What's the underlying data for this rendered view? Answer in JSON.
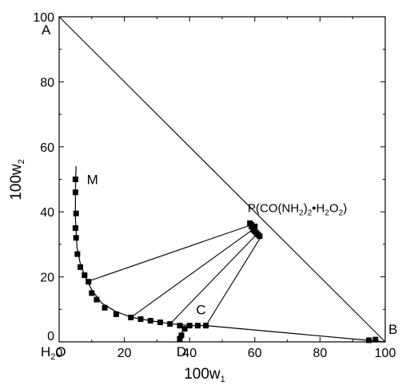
{
  "chart_data": {
    "type": "scatter",
    "title": "",
    "xlabel": "100w",
    "xlabel_sub": "1",
    "ylabel": "100w",
    "ylabel_sub": "2",
    "xlim": [
      0,
      100
    ],
    "ylim": [
      0,
      100
    ],
    "x_ticks": [
      0,
      20,
      40,
      60,
      80,
      100
    ],
    "y_ticks": [
      0,
      20,
      40,
      60,
      80,
      100
    ],
    "grid": false,
    "legend": "none",
    "colors": {
      "marker": "#000000",
      "line": "#000000"
    },
    "corner_labels": {
      "water": {
        "base": "H",
        "sub": "2",
        "tail": "O"
      },
      "A": "A",
      "B": "B"
    },
    "point_labels": [
      {
        "text": "M",
        "x": 8.5,
        "y": 50
      },
      {
        "text": "C",
        "x": 42,
        "y": 10
      },
      {
        "text": "D",
        "x": 36,
        "y": -3
      }
    ],
    "compound_label": {
      "x": 63.5,
      "y": 37,
      "parts": [
        {
          "t": "P(CO(NH"
        },
        {
          "t": "2",
          "sub": true
        },
        {
          "t": ")"
        },
        {
          "t": "2",
          "sub": true
        },
        {
          "t": "•H"
        },
        {
          "t": "2",
          "sub": true
        },
        {
          "t": "O"
        },
        {
          "t": "2",
          "sub": true
        },
        {
          "t": ")"
        }
      ]
    },
    "diagonal": [
      [
        0,
        100
      ],
      [
        100,
        0
      ]
    ],
    "series": [
      {
        "name": "",
        "kind": "solubility_curve",
        "points": [
          [
            5,
            50
          ],
          [
            5,
            46
          ],
          [
            5.2,
            39.5
          ],
          [
            5,
            35
          ],
          [
            5.2,
            32
          ],
          [
            5.6,
            27
          ],
          [
            6.5,
            23
          ],
          [
            7.8,
            20.5
          ],
          [
            9,
            18.5
          ],
          [
            10,
            15
          ],
          [
            11.5,
            13
          ],
          [
            14,
            10.5
          ],
          [
            17.5,
            8.5
          ],
          [
            22,
            7.5
          ],
          [
            25,
            7
          ],
          [
            28,
            6.5
          ],
          [
            31,
            6
          ],
          [
            34,
            5.5
          ],
          [
            37,
            5
          ],
          [
            40,
            5
          ],
          [
            42.5,
            5
          ],
          [
            45,
            5
          ]
        ]
      },
      {
        "name": "",
        "kind": "curve_D",
        "points": [
          [
            37,
            1
          ],
          [
            37.5,
            2
          ],
          [
            38.5,
            4
          ]
        ]
      },
      {
        "name": "",
        "kind": "solid_P_cluster",
        "points": [
          [
            58.5,
            36.5
          ],
          [
            59,
            35.5
          ],
          [
            59.5,
            34.5
          ],
          [
            60,
            34
          ],
          [
            60.5,
            33.5
          ],
          [
            61,
            33
          ],
          [
            61.5,
            32.5
          ],
          [
            60,
            35.5
          ],
          [
            59,
            36
          ]
        ]
      },
      {
        "name": "",
        "kind": "solid_B",
        "points": [
          [
            95,
            0.5
          ],
          [
            97,
            0.7
          ]
        ]
      }
    ],
    "curves": [
      [
        [
          5.2,
          54
        ],
        [
          5,
          47
        ],
        [
          5,
          38
        ],
        [
          5.5,
          29
        ],
        [
          6.5,
          24
        ],
        [
          8,
          20
        ],
        [
          10,
          16
        ],
        [
          13,
          12
        ],
        [
          17,
          9.5
        ],
        [
          22,
          7.6
        ],
        [
          28,
          6.5
        ],
        [
          34,
          5.6
        ],
        [
          40,
          5
        ],
        [
          45,
          5
        ]
      ],
      [
        [
          45,
          5
        ],
        [
          100,
          0
        ]
      ],
      [
        [
          36.5,
          0.5
        ],
        [
          37,
          2
        ],
        [
          38.5,
          4.2
        ]
      ]
    ],
    "tie_lines": [
      [
        [
          8.5,
          18.5
        ],
        [
          59,
          36
        ]
      ],
      [
        [
          22,
          7.5
        ],
        [
          60,
          35
        ]
      ],
      [
        [
          34,
          5.5
        ],
        [
          61,
          33.5
        ]
      ],
      [
        [
          45,
          5
        ],
        [
          62,
          32.5
        ]
      ]
    ]
  }
}
